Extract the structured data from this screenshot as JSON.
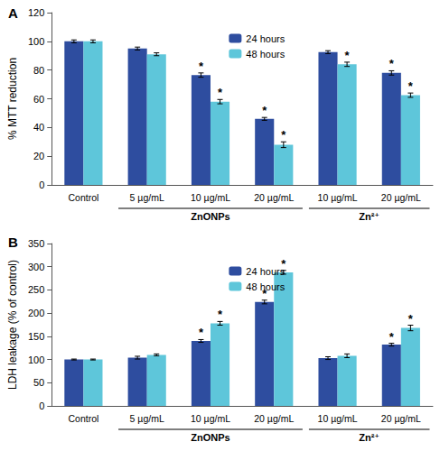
{
  "chart_data": [
    {
      "type": "bar",
      "title": "A",
      "y_label": "% MTT reduction",
      "categories": [
        "Control",
        "5 µg/mL",
        "10 µg/mL",
        "20 µg/mL",
        "10 µg/mL",
        "20 µg/mL"
      ],
      "groups": [
        {
          "label": "ZnONPs",
          "from": 1,
          "to": 3
        },
        {
          "label": "Zn²⁺",
          "from": 4,
          "to": 5
        }
      ],
      "series": [
        {
          "name": "24 hours",
          "color": "#2e4d9f",
          "values": [
            100,
            95,
            76.5,
            46,
            92.5,
            78
          ],
          "errors": [
            1,
            1,
            1.5,
            1,
            1,
            1.5
          ],
          "significant": [
            false,
            false,
            true,
            true,
            false,
            true
          ]
        },
        {
          "name": "48 hours",
          "color": "#5ec6da",
          "values": [
            100,
            91,
            58,
            28,
            84,
            62.5
          ],
          "errors": [
            1,
            1,
            1.5,
            2,
            1.5,
            1.5
          ],
          "significant": [
            false,
            false,
            true,
            true,
            true,
            true
          ]
        }
      ],
      "significance_mark": "*",
      "ylim": [
        0,
        120
      ],
      "yticks": [
        0,
        20,
        40,
        60,
        80,
        100,
        120
      ],
      "grid": false,
      "legend": "upper center"
    },
    {
      "type": "bar",
      "title": "B",
      "y_label": "LDH leakage (% of control)",
      "categories": [
        "Control",
        "5 µg/mL",
        "10 µg/mL",
        "20 µg/mL",
        "10 µg/mL",
        "20 µg/mL"
      ],
      "groups": [
        {
          "label": "ZnONPs",
          "from": 1,
          "to": 3
        },
        {
          "label": "Zn²⁺",
          "from": 4,
          "to": 5
        }
      ],
      "series": [
        {
          "name": "24 hours",
          "color": "#2e4d9f",
          "values": [
            100,
            104,
            140,
            224,
            103,
            132
          ],
          "errors": [
            1,
            3,
            3,
            4,
            3,
            3
          ],
          "significant": [
            false,
            false,
            true,
            true,
            false,
            true
          ]
        },
        {
          "name": "48 hours",
          "color": "#5ec6da",
          "values": [
            100,
            110,
            178,
            288,
            108,
            168
          ],
          "errors": [
            1,
            2,
            4,
            4,
            4,
            6
          ],
          "significant": [
            false,
            false,
            true,
            true,
            false,
            true
          ]
        }
      ],
      "significance_mark": "*",
      "ylim": [
        0,
        350
      ],
      "yticks": [
        0,
        50,
        100,
        150,
        200,
        250,
        300,
        350
      ],
      "grid": false,
      "legend": "upper center"
    }
  ]
}
